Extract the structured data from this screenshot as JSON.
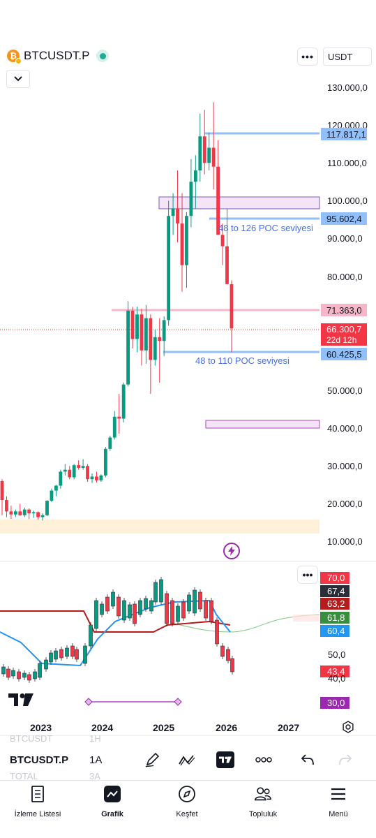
{
  "header": {
    "symbol": "BTCUSDT.P",
    "currency": "USDT",
    "more_label": "•••"
  },
  "price_axis": {
    "labels": [
      "130.000,0",
      "120.000,0",
      "110.000,0",
      "100.000,0",
      "90.000,0",
      "80.000,0",
      "50.000,0",
      "40.000,0",
      "30.000,0",
      "20.000,0",
      "10.000,0"
    ]
  },
  "price_tags": {
    "level_117": "117.817,1",
    "level_95": "95.602,4",
    "level_71": "71.363,0",
    "current_price": "66.300,7",
    "countdown": "22d 12h",
    "level_60": "60.425,5"
  },
  "annotations": {
    "poc_126": "48 to 126 POC seviyesi",
    "poc_110": "48 to 110 POC seviyesi"
  },
  "rsi_panel": {
    "more_label": "•••",
    "tags": [
      {
        "value": "70,0",
        "color": "#f23645"
      },
      {
        "value": "67,4",
        "color": "#2a2e39"
      },
      {
        "value": "63,2",
        "color": "#b71c1c"
      },
      {
        "value": "61,8",
        "color": "#388e3c"
      },
      {
        "value": "60,4",
        "color": "#2196f3"
      },
      {
        "value": "43,4",
        "color": "#f23645"
      },
      {
        "value": "30,0",
        "color": "#9c27b0"
      }
    ],
    "labels": [
      "50,0",
      "40,0"
    ]
  },
  "time_axis": {
    "labels": [
      "2023",
      "2024",
      "2025",
      "2026",
      "2027"
    ]
  },
  "toolbar": {
    "symbol": "BTCUSDT.P",
    "interval": "1A",
    "ghost_top_symbol": "BTCUSDT",
    "ghost_top_interval": "1H",
    "ghost_bottom_symbol": "TOTAL",
    "ghost_bottom_interval": "3A"
  },
  "bottom_nav": {
    "items": [
      {
        "label": "İzleme Listesi",
        "icon": "watchlist-icon"
      },
      {
        "label": "Grafik",
        "icon": "chart-icon"
      },
      {
        "label": "Keşfet",
        "icon": "compass-icon"
      },
      {
        "label": "Topluluk",
        "icon": "community-icon"
      },
      {
        "label": "Menü",
        "icon": "menu-icon"
      }
    ]
  },
  "colors": {
    "up": "#089981",
    "down": "#f23645",
    "level_blue": "#90bff9",
    "level_pink": "#f7b6c8",
    "zone_purple": "#f3e5f5",
    "zone_orange": "#fff0d9",
    "poc_text": "#4a6fd8"
  }
}
